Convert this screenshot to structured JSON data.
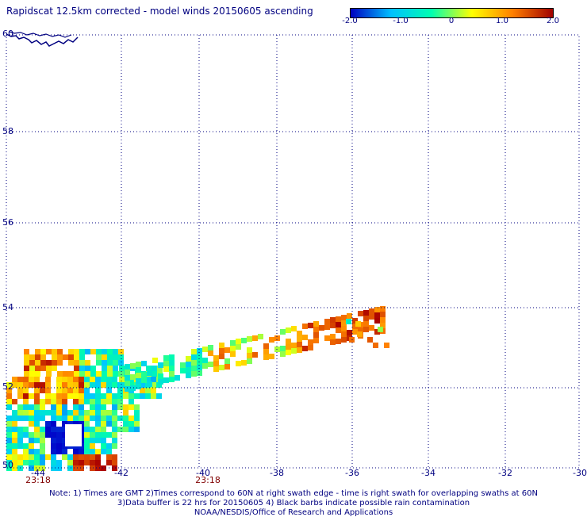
{
  "title": "Rapidscat 12.5km corrected - model winds 20150605 ascending",
  "colorbar": {
    "labels": [
      "-2.0",
      "-1.0",
      "0",
      "1.0",
      "2.0"
    ],
    "colors": [
      "#0000c0",
      "#00c0ff",
      "#00ffb0",
      "#ffff00",
      "#ff8000",
      "#a00000"
    ]
  },
  "map": {
    "lon_labels": [
      "-44",
      "-42",
      "-40",
      "-38",
      "-36",
      "-34",
      "-32",
      "-30"
    ],
    "lat_labels": [
      "60",
      "58",
      "56",
      "54",
      "52",
      "50"
    ],
    "time_labels": [
      "23:18",
      "23:18"
    ],
    "grid_color": "#000080",
    "coast_color": "#000080"
  },
  "notes": {
    "line1": "Note: 1) Times are GMT 2)Times correspond to 60N at right swath edge - time is right swath for overlapping swaths at 60N",
    "line2": "3)Data buffer is 22 hrs for 20150605 4) Black barbs indicate possible rain contamination",
    "line3": "NOAA/NESDIS/Office of Research and Applications"
  }
}
